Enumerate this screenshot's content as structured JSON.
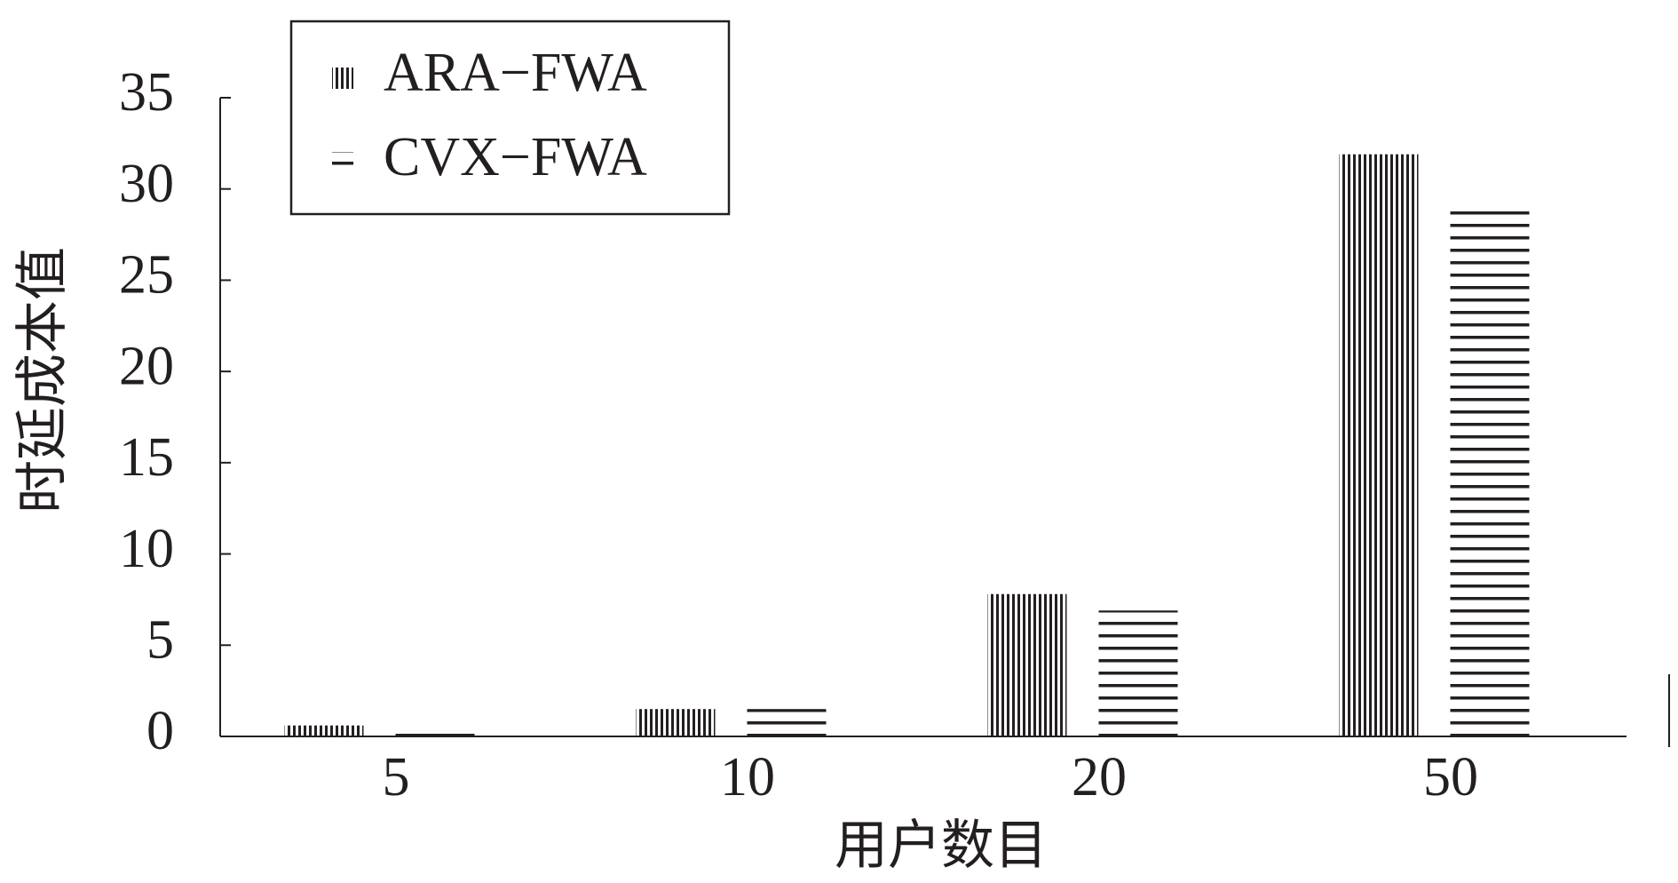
{
  "chart_data": {
    "type": "bar",
    "x_label": "用户数目",
    "y_label": "时延成本值",
    "categories": [
      "5",
      "10",
      "20",
      "50"
    ],
    "series": [
      {
        "name": "ARA−FWA",
        "color": "#231f20",
        "pattern": "vertical",
        "values": [
          0.6,
          1.5,
          7.8,
          31.9
        ]
      },
      {
        "name": "CVX−FWA",
        "color": "#231f20",
        "pattern": "horizontal",
        "values": [
          0.6,
          1.5,
          6.9,
          28.8
        ]
      }
    ],
    "ylim": [
      0,
      35
    ],
    "yticks": [
      0,
      5,
      10,
      15,
      20,
      25,
      30,
      35
    ],
    "grid": false,
    "legend": "top-left"
  }
}
